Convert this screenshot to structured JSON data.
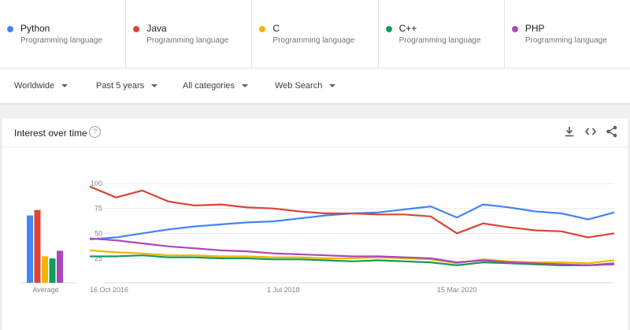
{
  "terms": [
    {
      "name": "Python",
      "category": "Programming language",
      "color": "#4285f4"
    },
    {
      "name": "Java",
      "category": "Programming language",
      "color": "#db4437"
    },
    {
      "name": "C",
      "category": "Programming language",
      "color": "#f4b400"
    },
    {
      "name": "C++",
      "category": "Programming language",
      "color": "#0f9d58"
    },
    {
      "name": "PHP",
      "category": "Programming language",
      "color": "#ab47bc"
    }
  ],
  "filters": {
    "region": "Worldwide",
    "period": "Past 5 years",
    "category": "All categories",
    "search_type": "Web Search"
  },
  "card": {
    "title": "Interest over time",
    "help_symbol": "?"
  },
  "icons": [
    "download-icon",
    "embed-icon",
    "share-icon",
    "help-icon",
    "caret-down-icon"
  ],
  "chart_data": {
    "type": "line",
    "y_ticks": [
      "100",
      "75",
      "50",
      "25"
    ],
    "ylim": [
      0,
      100
    ],
    "x_ticks": [
      "16 Oct 2016",
      "1 Jul 2018",
      "15 Mar 2020"
    ],
    "x": [
      "2016-10",
      "2017-01",
      "2017-04",
      "2017-07",
      "2017-10",
      "2018-01",
      "2018-04",
      "2018-07",
      "2018-10",
      "2019-01",
      "2019-04",
      "2019-07",
      "2019-10",
      "2020-01",
      "2020-04",
      "2020-07",
      "2020-10",
      "2021-01",
      "2021-04",
      "2021-07",
      "2021-10"
    ],
    "series": [
      {
        "name": "Python",
        "color": "#4285f4",
        "values": [
          44,
          46,
          50,
          54,
          57,
          59,
          61,
          62,
          65,
          68,
          70,
          71,
          74,
          77,
          66,
          79,
          76,
          72,
          70,
          64,
          71
        ]
      },
      {
        "name": "Java",
        "color": "#db4437",
        "values": [
          97,
          86,
          93,
          82,
          78,
          79,
          76,
          75,
          72,
          70,
          70,
          69,
          69,
          67,
          50,
          60,
          56,
          53,
          52,
          46,
          50
        ]
      },
      {
        "name": "C",
        "color": "#f4b400",
        "values": [
          33,
          31,
          30,
          28,
          28,
          27,
          27,
          26,
          26,
          25,
          25,
          26,
          25,
          24,
          20,
          24,
          22,
          21,
          21,
          20,
          23
        ]
      },
      {
        "name": "C++",
        "color": "#0f9d58",
        "values": [
          27,
          27,
          28,
          26,
          26,
          25,
          25,
          24,
          24,
          23,
          22,
          23,
          22,
          21,
          18,
          21,
          20,
          19,
          18,
          18,
          20
        ]
      },
      {
        "name": "PHP",
        "color": "#ab47bc",
        "values": [
          45,
          43,
          40,
          37,
          35,
          33,
          32,
          30,
          29,
          28,
          27,
          27,
          26,
          25,
          21,
          23,
          21,
          20,
          19,
          18,
          19
        ]
      }
    ],
    "average": {
      "label": "Average",
      "values": [
        61,
        66,
        24,
        22,
        29
      ]
    },
    "grid": true,
    "legend": "none"
  }
}
